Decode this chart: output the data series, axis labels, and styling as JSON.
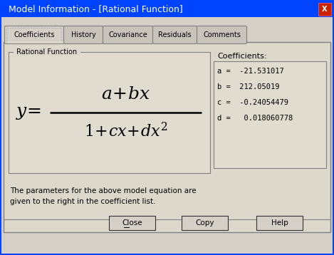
{
  "title": "Model Information - [Rational Function]",
  "title_bg": "#0044ff",
  "title_color": "white",
  "dialog_bg": "#d4d0c8",
  "tab_bg_inactive": "#c8c4bc",
  "panel_bg": "#dcd8cc",
  "section_label": "Rational Function",
  "coeff_label": "Coefficients:",
  "coeff_values": [
    "a =  -21.531017",
    "b =  212.05019",
    "c =  -0.24054479",
    "d =   0.018060778"
  ],
  "note_text": "The parameters for the above model equation are\ngiven to the right in the coefficient list.",
  "tabs": [
    "Coefficients",
    "History",
    "Covariance",
    "Residuals",
    "Comments"
  ],
  "buttons": [
    "Close",
    "Copy",
    "Help"
  ],
  "border_color": "#808080",
  "inner_bg": "#e0dcd0"
}
